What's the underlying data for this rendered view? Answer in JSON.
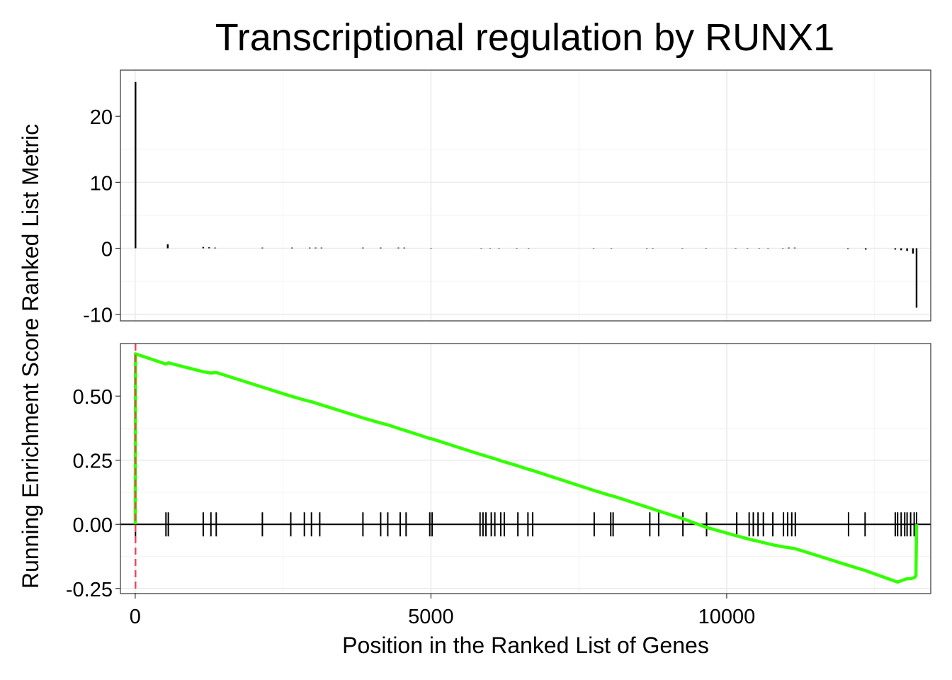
{
  "chart_data": {
    "type": "line",
    "title": "Transcriptional regulation by RUNX1",
    "xlabel": "Position in the Ranked List of Genes",
    "ylabel": "Running Enrichment Score Ranked List Metric",
    "xlim": [
      -250,
      13450
    ],
    "x_ticks": [
      0,
      5000,
      10000
    ],
    "x_tick_labels": [
      "0",
      "5000",
      "10000"
    ],
    "grid": true,
    "legend": "none",
    "colors": {
      "enrichment_line": "#33ff00",
      "peak_line": "#ee4455",
      "metric_bars": "#000000",
      "hits": "#000000"
    },
    "panels": [
      {
        "name": "ranked-list-metric",
        "ylim": [
          -11,
          27
        ],
        "y_ticks": [
          -10,
          0,
          10,
          20
        ],
        "y_tick_labels": [
          "-10",
          "0",
          "10",
          "20"
        ],
        "bars": [
          [
            5,
            25.2
          ],
          [
            550,
            0.6
          ],
          [
            1150,
            0.2
          ],
          [
            1250,
            0.15
          ],
          [
            1350,
            0.1
          ],
          [
            2150,
            0.1
          ],
          [
            2650,
            0.1
          ],
          [
            2950,
            0.1
          ],
          [
            3050,
            0.1
          ],
          [
            3150,
            0.1
          ],
          [
            3850,
            0.1
          ],
          [
            4150,
            0.1
          ],
          [
            4450,
            0.1
          ],
          [
            4550,
            0.1
          ],
          [
            5000,
            0.05
          ],
          [
            5850,
            0.05
          ],
          [
            6000,
            0.05
          ],
          [
            6150,
            0.05
          ],
          [
            6450,
            0.05
          ],
          [
            6650,
            0.05
          ],
          [
            7750,
            0.05
          ],
          [
            8050,
            0.05
          ],
          [
            8650,
            0.05
          ],
          [
            8750,
            0.05
          ],
          [
            9250,
            0.05
          ],
          [
            9650,
            0.05
          ],
          [
            10150,
            0.05
          ],
          [
            10350,
            0.05
          ],
          [
            10550,
            0.05
          ],
          [
            10700,
            0.05
          ],
          [
            10950,
            0.05
          ],
          [
            11050,
            0.1
          ],
          [
            11150,
            0.1
          ],
          [
            12050,
            -0.1
          ],
          [
            12350,
            -0.2
          ],
          [
            12850,
            -0.2
          ],
          [
            12950,
            -0.3
          ],
          [
            13050,
            -0.4
          ],
          [
            13150,
            -0.8
          ],
          [
            13210,
            -9.0
          ]
        ]
      },
      {
        "name": "running-enrichment-score",
        "ylim": [
          -0.27,
          0.705
        ],
        "y_ticks": [
          -0.25,
          0,
          0.25,
          0.5
        ],
        "y_tick_labels": [
          "-0.25",
          "0.00",
          "0.25",
          "0.50"
        ],
        "peak_x": 5,
        "hits": [
          5,
          520,
          560,
          1150,
          1280,
          1370,
          2150,
          2630,
          2860,
          2980,
          3120,
          3850,
          4150,
          4270,
          4480,
          4580,
          4980,
          5020,
          5830,
          5880,
          5930,
          6020,
          6080,
          6180,
          6240,
          6470,
          6640,
          6720,
          7760,
          8040,
          8080,
          8700,
          8850,
          9260,
          9660,
          10170,
          10380,
          10450,
          10530,
          10620,
          10780,
          10960,
          11030,
          11100,
          11160,
          12060,
          12340,
          12850,
          12890,
          12950,
          13010,
          13050,
          13110,
          13170,
          13210
        ],
        "line": [
          [
            0,
            0
          ],
          [
            5,
            0.665
          ],
          [
            520,
            0.625
          ],
          [
            560,
            0.63
          ],
          [
            1150,
            0.595
          ],
          [
            1280,
            0.59
          ],
          [
            1370,
            0.592
          ],
          [
            2150,
            0.535
          ],
          [
            2630,
            0.5
          ],
          [
            2860,
            0.485
          ],
          [
            2980,
            0.478
          ],
          [
            3120,
            0.468
          ],
          [
            3850,
            0.415
          ],
          [
            4150,
            0.395
          ],
          [
            4270,
            0.388
          ],
          [
            4480,
            0.372
          ],
          [
            4580,
            0.365
          ],
          [
            4980,
            0.335
          ],
          [
            5020,
            0.333
          ],
          [
            5830,
            0.273
          ],
          [
            5880,
            0.27
          ],
          [
            5930,
            0.266
          ],
          [
            6020,
            0.26
          ],
          [
            6080,
            0.256
          ],
          [
            6180,
            0.248
          ],
          [
            6240,
            0.244
          ],
          [
            6470,
            0.228
          ],
          [
            6640,
            0.215
          ],
          [
            6720,
            0.21
          ],
          [
            7760,
            0.132
          ],
          [
            8040,
            0.112
          ],
          [
            8080,
            0.11
          ],
          [
            8700,
            0.064
          ],
          [
            8850,
            0.052
          ],
          [
            9260,
            0.022
          ],
          [
            9660,
            -0.012
          ],
          [
            10170,
            -0.045
          ],
          [
            10380,
            -0.058
          ],
          [
            10450,
            -0.062
          ],
          [
            10530,
            -0.066
          ],
          [
            10620,
            -0.071
          ],
          [
            10780,
            -0.08
          ],
          [
            10960,
            -0.088
          ],
          [
            11030,
            -0.09
          ],
          [
            11100,
            -0.093
          ],
          [
            11160,
            -0.095
          ],
          [
            12060,
            -0.16
          ],
          [
            12340,
            -0.18
          ],
          [
            12850,
            -0.222
          ],
          [
            12890,
            -0.225
          ],
          [
            12950,
            -0.22
          ],
          [
            13010,
            -0.215
          ],
          [
            13050,
            -0.212
          ],
          [
            13110,
            -0.212
          ],
          [
            13170,
            -0.208
          ],
          [
            13200,
            -0.2
          ],
          [
            13210,
            0
          ]
        ]
      }
    ]
  }
}
